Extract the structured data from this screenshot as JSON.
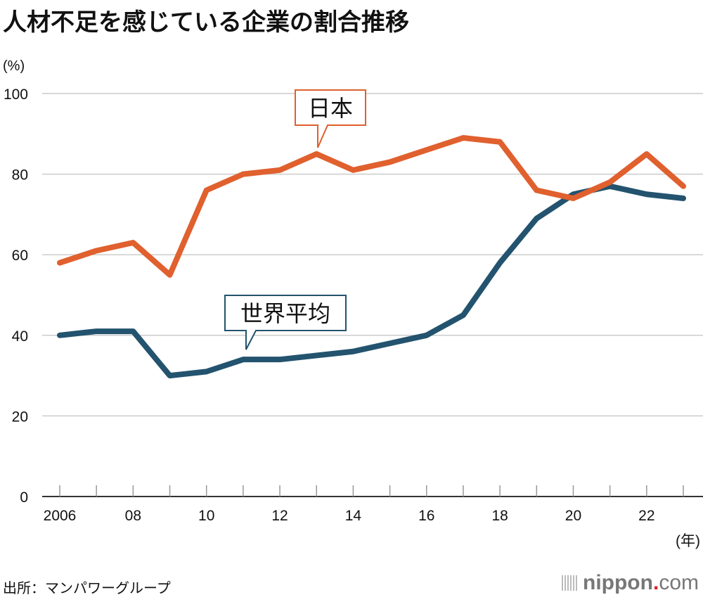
{
  "title": "人材不足を感じている企業の割合推移",
  "source": "出所：マンパワーグループ",
  "logo": {
    "main": "nippon",
    "dot": ".",
    "tld": "com"
  },
  "chart_data": {
    "type": "line",
    "title": "人材不足を感じている企業の割合推移",
    "ylabel": "(%)",
    "xlabel": "(年)",
    "ylim": [
      0,
      100
    ],
    "yticks": [
      0,
      20,
      40,
      60,
      80,
      100
    ],
    "x": [
      2006,
      2007,
      2008,
      2009,
      2010,
      2011,
      2012,
      2013,
      2014,
      2015,
      2016,
      2017,
      2018,
      2019,
      2020,
      2021,
      2022,
      2023
    ],
    "xtick_labels": [
      {
        "x": 2006,
        "label": "2006"
      },
      {
        "x": 2008,
        "label": "08"
      },
      {
        "x": 2010,
        "label": "10"
      },
      {
        "x": 2012,
        "label": "12"
      },
      {
        "x": 2014,
        "label": "14"
      },
      {
        "x": 2016,
        "label": "16"
      },
      {
        "x": 2018,
        "label": "18"
      },
      {
        "x": 2020,
        "label": "20"
      },
      {
        "x": 2022,
        "label": "22"
      }
    ],
    "grid": true,
    "series": [
      {
        "name": "日本",
        "color": "#e0602e",
        "values": [
          58,
          61,
          63,
          55,
          76,
          80,
          81,
          85,
          81,
          83,
          86,
          89,
          88,
          76,
          74,
          78,
          85,
          77
        ]
      },
      {
        "name": "世界平均",
        "color": "#23536e",
        "values": [
          40,
          41,
          41,
          30,
          31,
          34,
          34,
          35,
          36,
          38,
          40,
          45,
          58,
          69,
          75,
          77,
          75,
          74
        ]
      }
    ]
  }
}
